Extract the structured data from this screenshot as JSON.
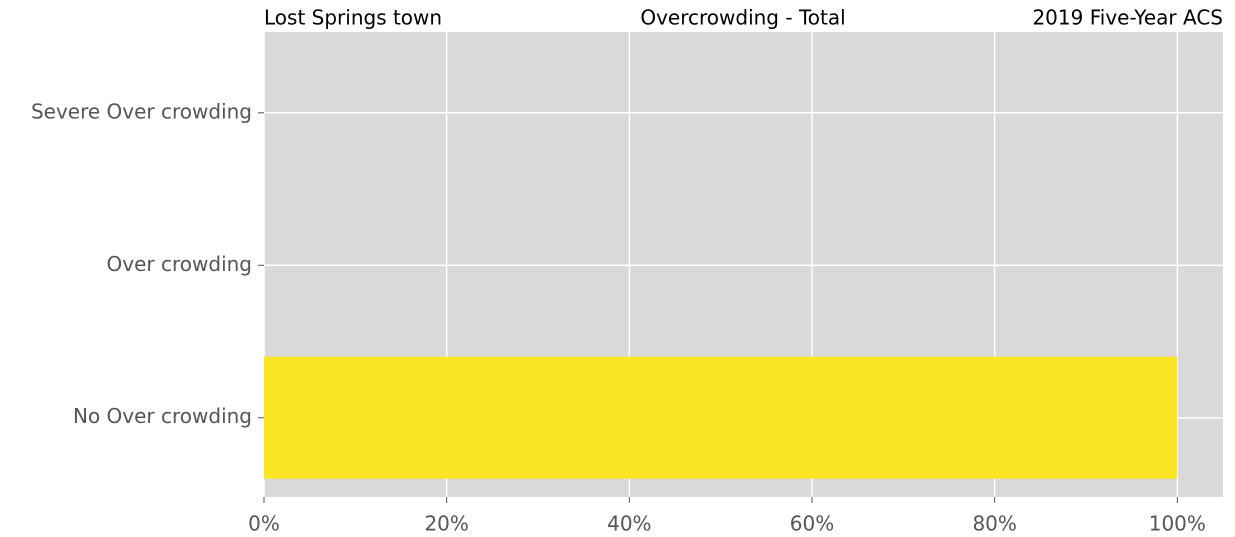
{
  "chart_data": {
    "type": "barh",
    "title_left": "Lost Springs town",
    "title": "Overcrowding - Total",
    "title_right": "2019 Five-Year ACS",
    "categories": [
      "No Over crowding",
      "Over crowding",
      "Severe Over crowding"
    ],
    "values": [
      100,
      0,
      0
    ],
    "color": "#fce522",
    "xlim": [
      0,
      105
    ],
    "xticks": [
      {
        "value": 0,
        "label": "0%"
      },
      {
        "value": 20,
        "label": "20%"
      },
      {
        "value": 40,
        "label": "40%"
      },
      {
        "value": 60,
        "label": "60%"
      },
      {
        "value": 80,
        "label": "80%"
      },
      {
        "value": 100,
        "label": "100%"
      }
    ],
    "grid": true
  }
}
